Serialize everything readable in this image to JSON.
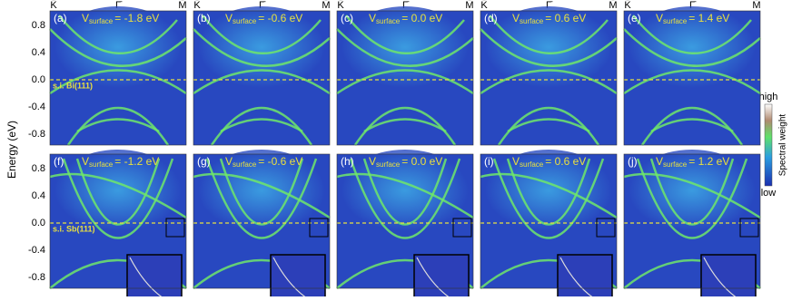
{
  "figure": {
    "y_axis_label": "Energy (eV)",
    "k_points": [
      "K̄",
      "Γ̄",
      "M̄"
    ],
    "colorbar": {
      "high": "high",
      "low": "low",
      "title": "Spectral weight"
    },
    "rows": [
      {
        "material": "s.i. Bi(111)",
        "y_ticks": [
          "0.8",
          "0.4",
          "0.0",
          "-0.4",
          "-0.8"
        ]
      },
      {
        "material": "s.i. Sb(111)",
        "y_ticks": [
          "0.8",
          "0.4",
          "0.0",
          "-0.4",
          "-0.8"
        ]
      }
    ],
    "panels": [
      {
        "label": "(a)",
        "v": "V",
        "sub": "surface",
        "value": "= -1.8 eV"
      },
      {
        "label": "(b)",
        "v": "V",
        "sub": "surface",
        "value": "= -0.6 eV"
      },
      {
        "label": "(c)",
        "v": "V",
        "sub": "surface",
        "value": "= 0.0 eV"
      },
      {
        "label": "(d)",
        "v": "V",
        "sub": "surface",
        "value": "= 0.6 eV"
      },
      {
        "label": "(e)",
        "v": "V",
        "sub": "surface",
        "value": "= 1.4 eV"
      },
      {
        "label": "(f)",
        "v": "V",
        "sub": "surface",
        "value": "= -1.2 eV"
      },
      {
        "label": "(g)",
        "v": "V",
        "sub": "surface",
        "value": "= -0.6 eV"
      },
      {
        "label": "(h)",
        "v": "V",
        "sub": "surface",
        "value": "= 0.0 eV"
      },
      {
        "label": "(i)",
        "v": "V",
        "sub": "surface",
        "value": "= 0.6 eV"
      },
      {
        "label": "(j)",
        "v": "V",
        "sub": "surface",
        "value": "= 1.2 eV"
      }
    ]
  }
}
